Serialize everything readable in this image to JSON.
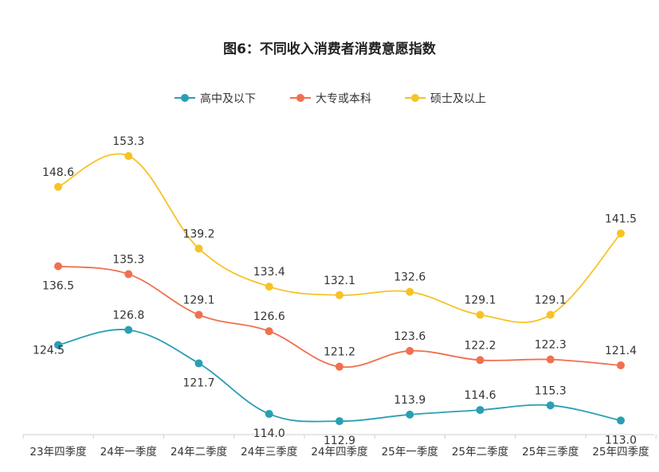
{
  "chart_data": {
    "type": "line",
    "title": "图6：不同收入消费者消费意愿指数",
    "categories": [
      "23年四季度",
      "24年一季度",
      "24年二季度",
      "24年三季度",
      "24年四季度",
      "25年一季度",
      "25年二季度",
      "25年三季度",
      "25年四季度"
    ],
    "series": [
      {
        "name": "高中及以下",
        "color": "#2a9fb3",
        "values": [
          124.5,
          126.8,
          121.7,
          114.0,
          112.9,
          113.9,
          114.6,
          115.3,
          113.0
        ],
        "labels": [
          "124.5",
          "126.8",
          "121.7",
          "114.0",
          "112.9",
          "113.9",
          "114.6",
          "115.3",
          "113.0"
        ]
      },
      {
        "name": "大专或本科",
        "color": "#f0704f",
        "values": [
          136.5,
          135.3,
          129.1,
          126.6,
          121.2,
          123.6,
          122.2,
          122.3,
          121.4
        ],
        "labels": [
          "136.5",
          "135.3",
          "129.1",
          "126.6",
          "121.2",
          "123.6",
          "122.2",
          "122.3",
          "121.4"
        ]
      },
      {
        "name": "硕士及以上",
        "color": "#f6c326",
        "values": [
          148.6,
          153.3,
          139.2,
          133.4,
          132.1,
          132.6,
          129.1,
          129.1,
          141.5
        ],
        "labels": [
          "148.6",
          "153.3",
          "139.2",
          "133.4",
          "132.1",
          "132.6",
          "129.1",
          "129.1",
          "141.5"
        ]
      }
    ],
    "legend_position": "top-center",
    "grid": false,
    "ylim": [
      106,
      159
    ]
  }
}
